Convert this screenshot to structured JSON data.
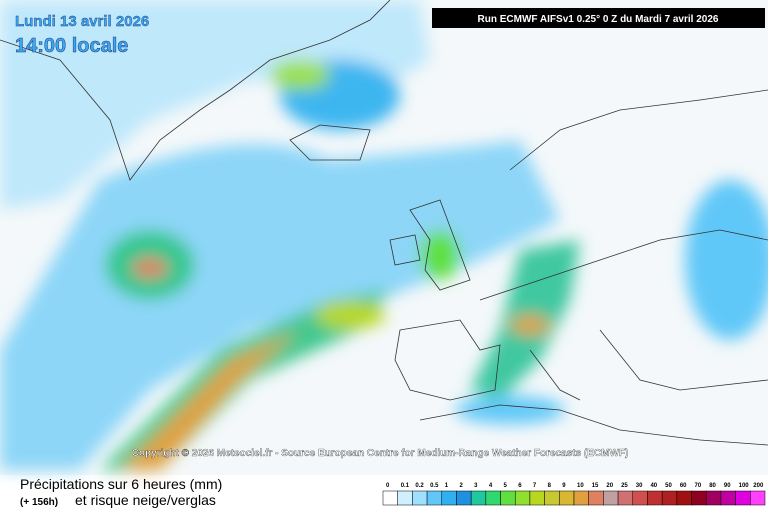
{
  "header": {
    "date": "Lundi 13 avril 2026",
    "time": "14:00 locale",
    "run": "Run ECMWF AIFSv1 0.25° 0 Z du Mardi 7 avril 2026"
  },
  "copyright": "Copyright © 2026 Meteociel.fr - Source European Centre for Medium-Range Weather Forecasts (ECMWF)",
  "footer": {
    "title": "Précipitations sur 6 heures (mm)",
    "lead": "(+ 156h)",
    "subtitle": "et risque neige/verglas"
  },
  "legend": {
    "labels": [
      "0",
      "0.1",
      "0.2",
      "0.5",
      "1",
      "2",
      "3",
      "4",
      "5",
      "6",
      "7",
      "8",
      "9",
      "10",
      "15",
      "20",
      "25",
      "30",
      "40",
      "50",
      "60",
      "70",
      "80",
      "90",
      "100",
      "200"
    ],
    "colors": [
      "#ffffff",
      "#d0f0ff",
      "#a0e0ff",
      "#60c8f8",
      "#30b0f0",
      "#2090e0",
      "#20c8a0",
      "#30d870",
      "#60e040",
      "#90e030",
      "#b8d820",
      "#c8c830",
      "#d8b830",
      "#e0a040",
      "#e08060",
      "#c0a0a0",
      "#d07070",
      "#d05050",
      "#c03030",
      "#b02020",
      "#a01010",
      "#900020",
      "#a00060",
      "#c000a0",
      "#e000e0",
      "#ff40ff"
    ]
  }
}
